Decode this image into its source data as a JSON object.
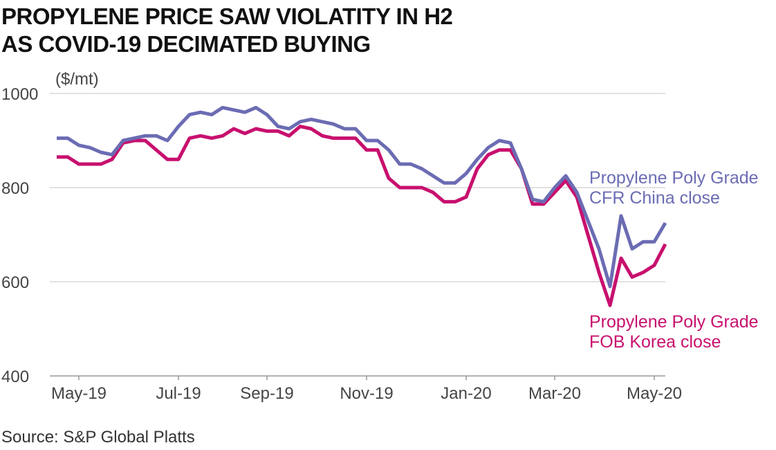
{
  "chart_data": {
    "type": "line",
    "title": "PROPYLENE PRICE SAW VIOLATITY IN H2\nAS COVID-19 DECIMATED BUYING",
    "y_label": "($/mt)",
    "source": "Source: S&P Global Platts",
    "categories": [
      null,
      null,
      "May-19",
      null,
      null,
      null,
      null,
      null,
      null,
      null,
      null,
      "Jul-19",
      null,
      null,
      null,
      null,
      null,
      null,
      null,
      "Sep-19",
      null,
      null,
      null,
      null,
      null,
      null,
      null,
      null,
      "Nov-19",
      null,
      null,
      null,
      null,
      null,
      null,
      null,
      null,
      "Jan-20",
      null,
      null,
      null,
      null,
      null,
      null,
      null,
      "Mar-20",
      null,
      null,
      null,
      null,
      null,
      null,
      null,
      null,
      "May-20",
      null
    ],
    "series": [
      {
        "name": "Propylene Poly Grade CFR China close",
        "color": "#6b6cb3",
        "values": [
          905,
          905,
          890,
          885,
          875,
          870,
          900,
          905,
          910,
          910,
          900,
          930,
          955,
          960,
          955,
          970,
          965,
          960,
          970,
          955,
          930,
          925,
          940,
          945,
          940,
          935,
          925,
          925,
          900,
          900,
          880,
          850,
          850,
          840,
          825,
          810,
          810,
          830,
          860,
          885,
          900,
          895,
          840,
          775,
          770,
          800,
          825,
          790,
          730,
          670,
          590,
          740,
          670,
          685,
          685,
          725
        ]
      },
      {
        "name": "Propylene Poly Grade FOB Korea close",
        "color": "#c8106e",
        "values": [
          865,
          865,
          850,
          850,
          850,
          860,
          895,
          900,
          900,
          880,
          860,
          860,
          905,
          910,
          905,
          910,
          925,
          915,
          925,
          920,
          920,
          910,
          930,
          925,
          910,
          905,
          905,
          905,
          880,
          880,
          820,
          800,
          800,
          800,
          790,
          770,
          770,
          780,
          840,
          870,
          880,
          880,
          840,
          765,
          765,
          790,
          815,
          780,
          700,
          620,
          550,
          650,
          610,
          620,
          635,
          680
        ]
      }
    ],
    "ylim": [
      400,
      1000
    ],
    "yticks": [
      400,
      600,
      800,
      1000
    ],
    "grid": true
  }
}
